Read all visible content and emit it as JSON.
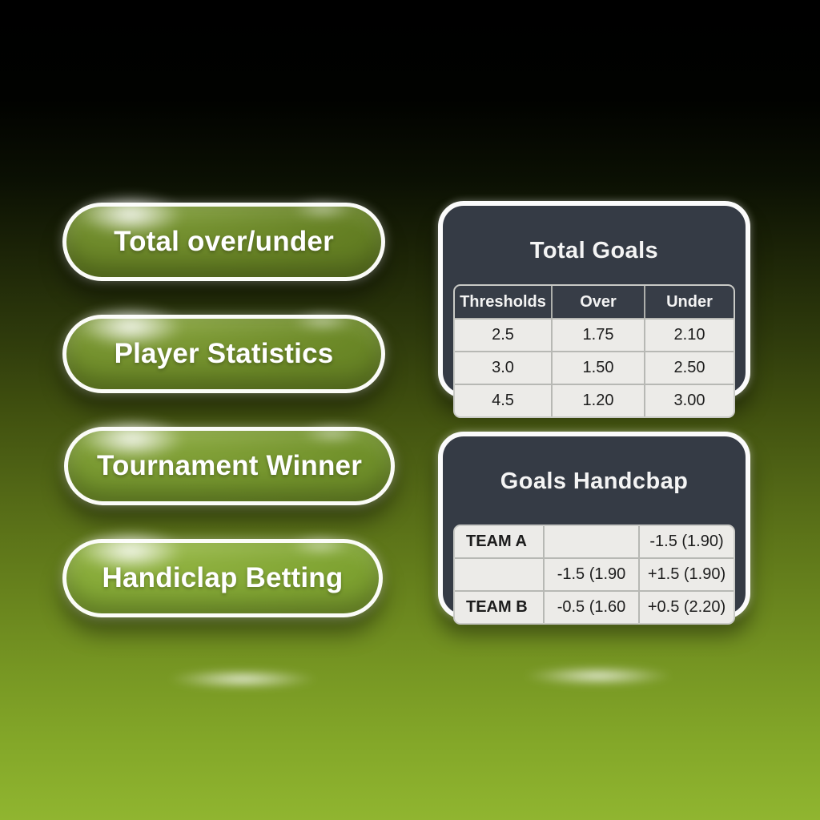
{
  "colors": {
    "background_top": "#000000",
    "background_bottom": "#90b530",
    "button_green": "#6b8a26",
    "button_border": "#ffffff",
    "panel_background": "#353b45",
    "panel_border": "#fbfbfb",
    "cell_background": "#ecebe8",
    "cell_text": "#1d1d1d",
    "header_text": "#f3f3f3"
  },
  "menu": {
    "buttons": [
      {
        "label": "Total over/under"
      },
      {
        "label": "Player Statistics"
      },
      {
        "label": "Tournament Winner"
      },
      {
        "label": "Handiclap Betting"
      }
    ]
  },
  "panels": [
    {
      "title": "Total Goals",
      "table": {
        "headers": [
          "Thresholds",
          "Over",
          "Under"
        ],
        "rows": [
          [
            "2.5",
            "1.75",
            "2.10"
          ],
          [
            "3.0",
            "1.50",
            "2.50"
          ],
          [
            "4.5",
            "1.20",
            "3.00"
          ]
        ]
      }
    },
    {
      "title": "Goals Handcbap",
      "table": {
        "rows": [
          [
            "TEAM A",
            "",
            "-1.5 (1.90)"
          ],
          [
            "",
            "-1.5 (1.90",
            "+1.5 (1.90)"
          ],
          [
            "TEAM B",
            "-0.5 (1.60",
            "+0.5 (2.20)"
          ]
        ]
      }
    }
  ]
}
